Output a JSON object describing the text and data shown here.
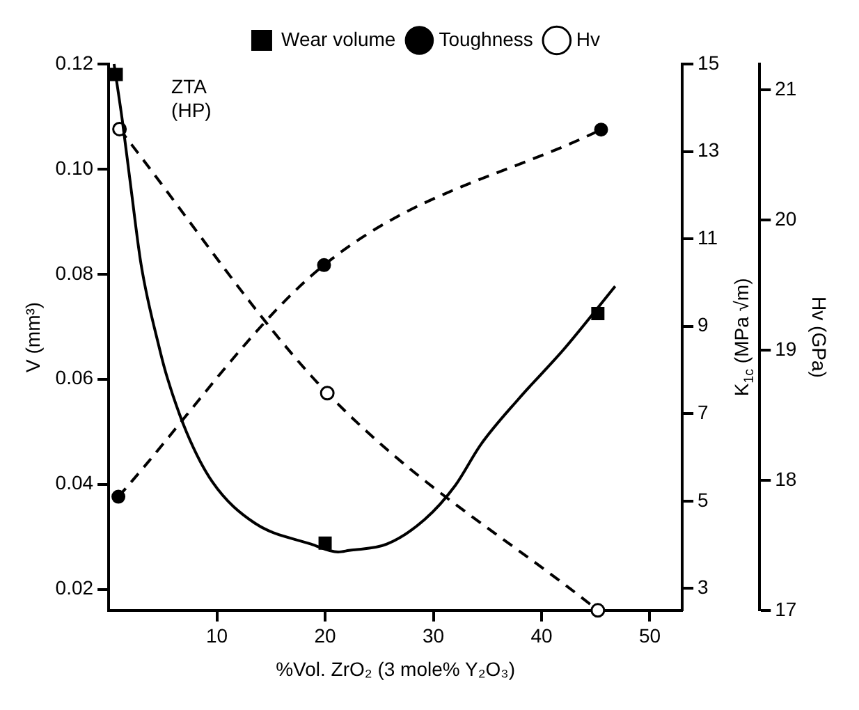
{
  "chart_data": {
    "type": "line",
    "xlabel": "%Vol. ZrO₂ (3 mole% Y₂O₃)",
    "ylabel": "V (mm³)",
    "y2label": "K$_{1c}$ (MPa √m)",
    "y3label": "Hv (GPa)",
    "annotations": [
      "ZTA (HP)"
    ],
    "xlim": [
      0,
      53
    ],
    "xticks": [
      10,
      20,
      30,
      40,
      50
    ],
    "ylim": [
      0.016,
      0.12
    ],
    "yticks": [
      0.02,
      0.04,
      0.06,
      0.08,
      {
        "value": 0.1,
        "label": "0.10"
      },
      0.12
    ],
    "y2lim": [
      2.5,
      15
    ],
    "y2ticks": [
      3,
      5,
      7,
      9,
      11,
      13,
      15
    ],
    "y3lim": [
      17,
      21.2
    ],
    "y3ticks": [
      17,
      18,
      19,
      20,
      21
    ],
    "legend": "top",
    "grid": false,
    "series": [
      {
        "name": "Wear volume",
        "type": "scatter",
        "marker": "square",
        "color": "#000000",
        "x": [
          0.7,
          20,
          45.2
        ],
        "values": [
          0.118,
          0.0288,
          0.0725
        ]
      },
      {
        "marker": "none",
        "line_style": "solid",
        "color": "#000000",
        "x": [
          0.5,
          1.26,
          2,
          3,
          4.7,
          5.4,
          7.2,
          9.6,
          13.5,
          18.7,
          21.2,
          22.2,
          25.7,
          29.2,
          32,
          34.4,
          37.9,
          42.1,
          46.8
        ],
        "values": [
          0.12,
          0.1093,
          0.0974,
          0.0818,
          0.0658,
          0.0604,
          0.0499,
          0.0404,
          0.0326,
          0.0286,
          0.0271,
          0.0274,
          0.0286,
          0.0333,
          0.0397,
          0.0476,
          0.0563,
          0.0658,
          0.0777
        ]
      },
      {
        "name": "Toughness",
        "axis": "y2",
        "marker": "circle",
        "line_style": "dashed",
        "color": "#000000",
        "x": [
          0.9,
          19.9,
          45.5
        ],
        "values": [
          5.1,
          10.4,
          13.5
        ]
      },
      {
        "name": "Hv",
        "axis": "y3",
        "marker": "open circle",
        "line_style": "dashed",
        "color": "#000000",
        "x": [
          1,
          20.2,
          45.2
        ],
        "values": [
          20.7,
          18.67,
          17
        ]
      }
    ]
  }
}
